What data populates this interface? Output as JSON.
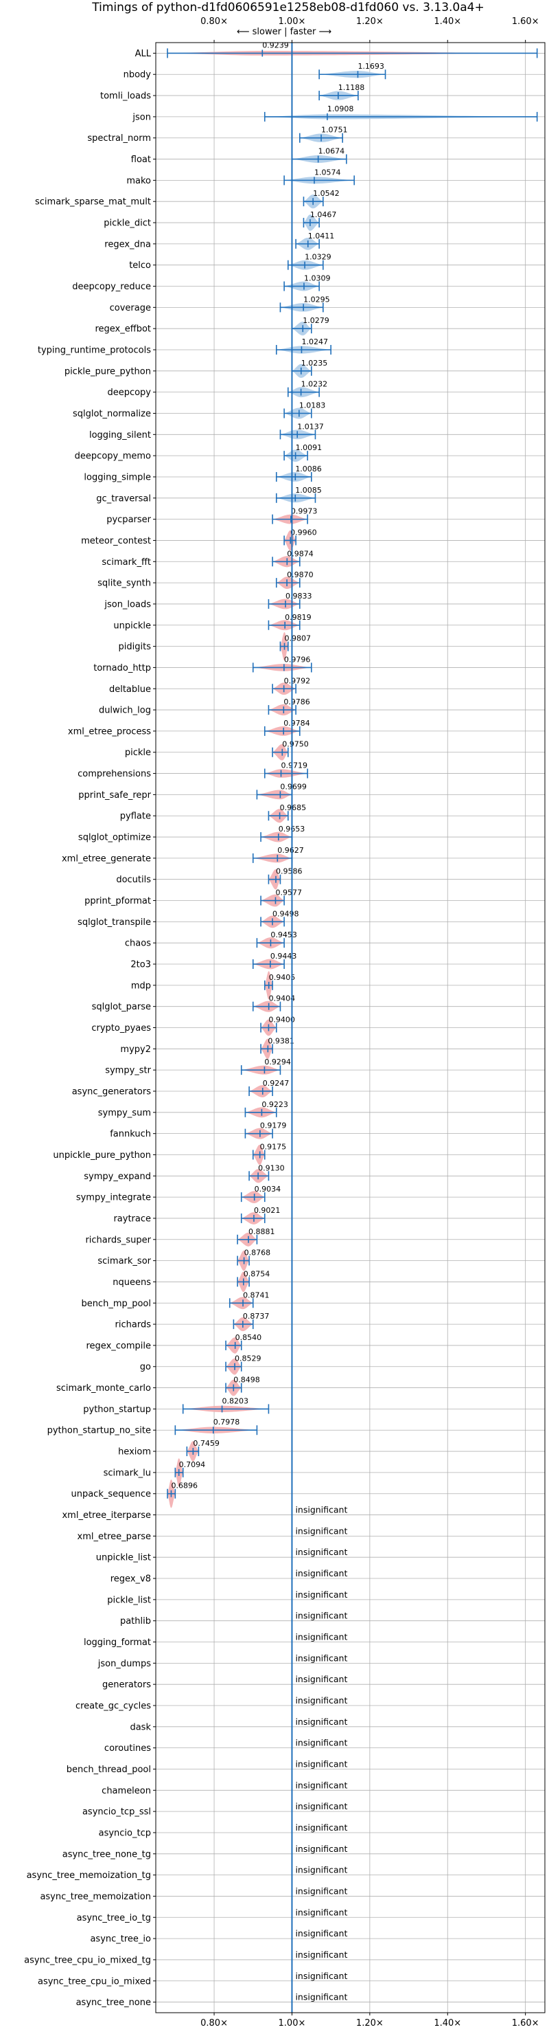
{
  "chart_data": {
    "type": "violin",
    "title": "Timings of python-d1fd0606591e1258eb08-d1fd060 vs. 3.13.0a4+",
    "direction_label": "⟵ slower | faster ⟶",
    "xlim": [
      0.65,
      1.65
    ],
    "ref_x": 1.0,
    "xticks": [
      {
        "v": 0.8,
        "label": "0.80×"
      },
      {
        "v": 1.0,
        "label": "1.00×"
      },
      {
        "v": 1.2,
        "label": "1.20×"
      },
      {
        "v": 1.4,
        "label": "1.40×"
      },
      {
        "v": 1.6,
        "label": "1.60×"
      }
    ],
    "insignificant_label": "insignificant",
    "colors": {
      "faster": "#a8c9e8",
      "slower": "#f2a8aa",
      "line": "#1f6fba",
      "grid": "#b0b0b0"
    },
    "benchmarks": [
      {
        "name": "ALL",
        "value": 0.9239,
        "lo": 0.68,
        "hi": 1.63,
        "label": "0.9239"
      },
      {
        "name": "nbody",
        "value": 1.1693,
        "lo": 1.07,
        "hi": 1.24,
        "label": "1.1693"
      },
      {
        "name": "tomli_loads",
        "value": 1.1188,
        "lo": 1.07,
        "hi": 1.17,
        "label": "1.1188"
      },
      {
        "name": "json",
        "value": 1.0908,
        "lo": 0.93,
        "hi": 1.63,
        "label": "1.0908"
      },
      {
        "name": "spectral_norm",
        "value": 1.0751,
        "lo": 1.02,
        "hi": 1.13,
        "label": "1.0751"
      },
      {
        "name": "float",
        "value": 1.0674,
        "lo": 1.0,
        "hi": 1.14,
        "label": "1.0674"
      },
      {
        "name": "mako",
        "value": 1.0574,
        "lo": 0.98,
        "hi": 1.16,
        "label": "1.0574"
      },
      {
        "name": "scimark_sparse_mat_mult",
        "value": 1.0542,
        "lo": 1.03,
        "hi": 1.08,
        "label": "1.0542"
      },
      {
        "name": "pickle_dict",
        "value": 1.0467,
        "lo": 1.03,
        "hi": 1.07,
        "label": "1.0467"
      },
      {
        "name": "regex_dna",
        "value": 1.0411,
        "lo": 1.01,
        "hi": 1.07,
        "label": "1.0411"
      },
      {
        "name": "telco",
        "value": 1.0329,
        "lo": 0.99,
        "hi": 1.08,
        "label": "1.0329"
      },
      {
        "name": "deepcopy_reduce",
        "value": 1.0309,
        "lo": 0.98,
        "hi": 1.07,
        "label": "1.0309"
      },
      {
        "name": "coverage",
        "value": 1.0295,
        "lo": 0.97,
        "hi": 1.08,
        "label": "1.0295"
      },
      {
        "name": "regex_effbot",
        "value": 1.0279,
        "lo": 1.0,
        "hi": 1.05,
        "label": "1.0279"
      },
      {
        "name": "typing_runtime_protocols",
        "value": 1.0247,
        "lo": 0.96,
        "hi": 1.1,
        "label": "1.0247"
      },
      {
        "name": "pickle_pure_python",
        "value": 1.0235,
        "lo": 1.0,
        "hi": 1.05,
        "label": "1.0235"
      },
      {
        "name": "deepcopy",
        "value": 1.0232,
        "lo": 0.99,
        "hi": 1.07,
        "label": "1.0232"
      },
      {
        "name": "sqlglot_normalize",
        "value": 1.0183,
        "lo": 0.98,
        "hi": 1.05,
        "label": "1.0183"
      },
      {
        "name": "logging_silent",
        "value": 1.0137,
        "lo": 0.97,
        "hi": 1.06,
        "label": "1.0137"
      },
      {
        "name": "deepcopy_memo",
        "value": 1.0091,
        "lo": 0.98,
        "hi": 1.04,
        "label": "1.0091"
      },
      {
        "name": "logging_simple",
        "value": 1.0086,
        "lo": 0.96,
        "hi": 1.05,
        "label": "1.0086"
      },
      {
        "name": "gc_traversal",
        "value": 1.0085,
        "lo": 0.96,
        "hi": 1.06,
        "label": "1.0085"
      },
      {
        "name": "pycparser",
        "value": 0.9973,
        "lo": 0.95,
        "hi": 1.04,
        "label": "0.9973"
      },
      {
        "name": "meteor_contest",
        "value": 0.996,
        "lo": 0.98,
        "hi": 1.01,
        "label": "0.9960"
      },
      {
        "name": "scimark_fft",
        "value": 0.9874,
        "lo": 0.95,
        "hi": 1.02,
        "label": "0.9874"
      },
      {
        "name": "sqlite_synth",
        "value": 0.987,
        "lo": 0.96,
        "hi": 1.02,
        "label": "0.9870"
      },
      {
        "name": "json_loads",
        "value": 0.9833,
        "lo": 0.94,
        "hi": 1.02,
        "label": "0.9833"
      },
      {
        "name": "unpickle",
        "value": 0.9819,
        "lo": 0.94,
        "hi": 1.02,
        "label": "0.9819"
      },
      {
        "name": "pidigits",
        "value": 0.9807,
        "lo": 0.97,
        "hi": 0.99,
        "label": "0.9807"
      },
      {
        "name": "tornado_http",
        "value": 0.9796,
        "lo": 0.9,
        "hi": 1.05,
        "label": "0.9796"
      },
      {
        "name": "deltablue",
        "value": 0.9792,
        "lo": 0.95,
        "hi": 1.01,
        "label": "0.9792"
      },
      {
        "name": "dulwich_log",
        "value": 0.9786,
        "lo": 0.94,
        "hi": 1.01,
        "label": "0.9786"
      },
      {
        "name": "xml_etree_process",
        "value": 0.9784,
        "lo": 0.93,
        "hi": 1.02,
        "label": "0.9784"
      },
      {
        "name": "pickle",
        "value": 0.975,
        "lo": 0.95,
        "hi": 0.99,
        "label": "0.9750"
      },
      {
        "name": "comprehensions",
        "value": 0.9719,
        "lo": 0.93,
        "hi": 1.04,
        "label": "0.9719"
      },
      {
        "name": "pprint_safe_repr",
        "value": 0.9699,
        "lo": 0.91,
        "hi": 1.0,
        "label": "0.9699"
      },
      {
        "name": "pyflate",
        "value": 0.9685,
        "lo": 0.94,
        "hi": 0.99,
        "label": "0.9685"
      },
      {
        "name": "sqlglot_optimize",
        "value": 0.9653,
        "lo": 0.92,
        "hi": 1.0,
        "label": "0.9653"
      },
      {
        "name": "xml_etree_generate",
        "value": 0.9627,
        "lo": 0.9,
        "hi": 1.0,
        "label": "0.9627"
      },
      {
        "name": "docutils",
        "value": 0.9586,
        "lo": 0.94,
        "hi": 0.97,
        "label": "0.9586"
      },
      {
        "name": "pprint_pformat",
        "value": 0.9577,
        "lo": 0.92,
        "hi": 0.98,
        "label": "0.9577"
      },
      {
        "name": "sqlglot_transpile",
        "value": 0.9498,
        "lo": 0.92,
        "hi": 0.98,
        "label": "0.9498"
      },
      {
        "name": "chaos",
        "value": 0.9453,
        "lo": 0.91,
        "hi": 0.98,
        "label": "0.9453"
      },
      {
        "name": "2to3",
        "value": 0.9443,
        "lo": 0.9,
        "hi": 0.98,
        "label": "0.9443"
      },
      {
        "name": "mdp",
        "value": 0.9405,
        "lo": 0.93,
        "hi": 0.95,
        "label": "0.9405"
      },
      {
        "name": "sqlglot_parse",
        "value": 0.9404,
        "lo": 0.9,
        "hi": 0.97,
        "label": "0.9404"
      },
      {
        "name": "crypto_pyaes",
        "value": 0.94,
        "lo": 0.92,
        "hi": 0.96,
        "label": "0.9400"
      },
      {
        "name": "mypy2",
        "value": 0.9381,
        "lo": 0.92,
        "hi": 0.95,
        "label": "0.9381"
      },
      {
        "name": "sympy_str",
        "value": 0.9294,
        "lo": 0.87,
        "hi": 0.97,
        "label": "0.9294"
      },
      {
        "name": "async_generators",
        "value": 0.9247,
        "lo": 0.89,
        "hi": 0.95,
        "label": "0.9247"
      },
      {
        "name": "sympy_sum",
        "value": 0.9223,
        "lo": 0.88,
        "hi": 0.96,
        "label": "0.9223"
      },
      {
        "name": "fannkuch",
        "value": 0.9179,
        "lo": 0.88,
        "hi": 0.95,
        "label": "0.9179"
      },
      {
        "name": "unpickle_pure_python",
        "value": 0.9175,
        "lo": 0.9,
        "hi": 0.93,
        "label": "0.9175"
      },
      {
        "name": "sympy_expand",
        "value": 0.913,
        "lo": 0.89,
        "hi": 0.94,
        "label": "0.9130"
      },
      {
        "name": "sympy_integrate",
        "value": 0.9034,
        "lo": 0.87,
        "hi": 0.93,
        "label": "0.9034"
      },
      {
        "name": "raytrace",
        "value": 0.9021,
        "lo": 0.87,
        "hi": 0.93,
        "label": "0.9021"
      },
      {
        "name": "richards_super",
        "value": 0.8881,
        "lo": 0.86,
        "hi": 0.91,
        "label": "0.8881"
      },
      {
        "name": "scimark_sor",
        "value": 0.8768,
        "lo": 0.86,
        "hi": 0.89,
        "label": "0.8768"
      },
      {
        "name": "nqueens",
        "value": 0.8754,
        "lo": 0.86,
        "hi": 0.89,
        "label": "0.8754"
      },
      {
        "name": "bench_mp_pool",
        "value": 0.8741,
        "lo": 0.84,
        "hi": 0.9,
        "label": "0.8741"
      },
      {
        "name": "richards",
        "value": 0.8737,
        "lo": 0.85,
        "hi": 0.9,
        "label": "0.8737"
      },
      {
        "name": "regex_compile",
        "value": 0.854,
        "lo": 0.83,
        "hi": 0.87,
        "label": "0.8540"
      },
      {
        "name": "go",
        "value": 0.8529,
        "lo": 0.83,
        "hi": 0.87,
        "label": "0.8529"
      },
      {
        "name": "scimark_monte_carlo",
        "value": 0.8498,
        "lo": 0.83,
        "hi": 0.87,
        "label": "0.8498"
      },
      {
        "name": "python_startup",
        "value": 0.8203,
        "lo": 0.72,
        "hi": 0.94,
        "label": "0.8203"
      },
      {
        "name": "python_startup_no_site",
        "value": 0.7978,
        "lo": 0.7,
        "hi": 0.91,
        "label": "0.7978"
      },
      {
        "name": "hexiom",
        "value": 0.7459,
        "lo": 0.73,
        "hi": 0.76,
        "label": "0.7459"
      },
      {
        "name": "scimark_lu",
        "value": 0.7094,
        "lo": 0.7,
        "hi": 0.72,
        "label": "0.7094"
      },
      {
        "name": "unpack_sequence",
        "value": 0.6896,
        "lo": 0.68,
        "hi": 0.7,
        "label": "0.6896"
      },
      {
        "name": "xml_etree_iterparse",
        "value": null
      },
      {
        "name": "xml_etree_parse",
        "value": null
      },
      {
        "name": "unpickle_list",
        "value": null
      },
      {
        "name": "regex_v8",
        "value": null
      },
      {
        "name": "pickle_list",
        "value": null
      },
      {
        "name": "pathlib",
        "value": null
      },
      {
        "name": "logging_format",
        "value": null
      },
      {
        "name": "json_dumps",
        "value": null
      },
      {
        "name": "generators",
        "value": null
      },
      {
        "name": "create_gc_cycles",
        "value": null
      },
      {
        "name": "dask",
        "value": null
      },
      {
        "name": "coroutines",
        "value": null
      },
      {
        "name": "bench_thread_pool",
        "value": null
      },
      {
        "name": "chameleon",
        "value": null
      },
      {
        "name": "asyncio_tcp_ssl",
        "value": null
      },
      {
        "name": "asyncio_tcp",
        "value": null
      },
      {
        "name": "async_tree_none_tg",
        "value": null
      },
      {
        "name": "async_tree_memoization_tg",
        "value": null
      },
      {
        "name": "async_tree_memoization",
        "value": null
      },
      {
        "name": "async_tree_io_tg",
        "value": null
      },
      {
        "name": "async_tree_io",
        "value": null
      },
      {
        "name": "async_tree_cpu_io_mixed_tg",
        "value": null
      },
      {
        "name": "async_tree_cpu_io_mixed",
        "value": null
      },
      {
        "name": "async_tree_none",
        "value": null
      }
    ]
  }
}
